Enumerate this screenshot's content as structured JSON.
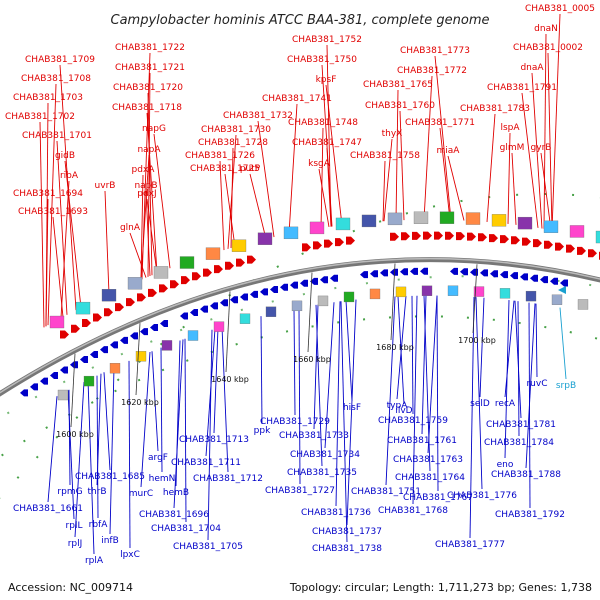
{
  "title": "Campylobacter hominis ATCC BAA-381, complete genome",
  "footer": {
    "accession": "Accession: NC_009714",
    "summary": "Topology: circular; Length: 1,711,273 bp; Genes: 1,738"
  },
  "colors": {
    "forward": "#e00000",
    "reverse": "#0000c8",
    "rna": "#1aa0d0",
    "backbone": "#888888"
  },
  "ticks": [
    "1600 kbp",
    "1620 kbp",
    "1640 kbp",
    "1660 kbp",
    "1680 kbp",
    "1700 kbp"
  ],
  "top_labels": [
    "CHAB381_0005",
    "dnaN",
    "CHAB381_0002",
    "dnaA",
    "CHAB381_1791",
    "CHAB381_1783",
    "lspA",
    "glmM",
    "gyrB",
    "CHAB381_1773",
    "CHAB381_1772",
    "CHAB381_1765",
    "CHAB381_1760",
    "CHAB381_1771",
    "miaA",
    "thyX",
    "CHAB381_1758",
    "CHAB381_1752",
    "CHAB381_1750",
    "kpsF",
    "CHAB381_1741",
    "CHAB381_1748",
    "CHAB381_1747",
    "ksgA",
    "CHAB381_1732",
    "CHAB381_1730",
    "CHAB381_1728",
    "CHAB381_1726",
    "CHAB381_1725",
    "putP",
    "CHAB381_1722",
    "CHAB381_1721",
    "CHAB381_1720",
    "CHAB381_1718",
    "napG",
    "napA",
    "pdxA",
    "napB",
    "pdxJ",
    "CHAB381_1709",
    "CHAB381_1708",
    "CHAB381_1703",
    "CHAB381_1702",
    "CHAB381_1701",
    "gidB",
    "ribA",
    "CHAB381_1694",
    "uvrB",
    "CHAB381_1693",
    "glnA"
  ],
  "bottom_labels": [
    "srpB",
    "ruvC",
    "selD",
    "recA",
    "CHAB381_1781",
    "CHAB381_1784",
    "eno",
    "CHAB381_1788",
    "CHAB381_1776",
    "CHAB381_1792",
    "CHAB381_1777",
    "typA",
    "ilvD",
    "CHAB381_1759",
    "CHAB381_1761",
    "CHAB381_1763",
    "CHAB381_1764",
    "CHAB381_1767",
    "CHAB381_1768",
    "CHAB381_1751",
    "hisF",
    "CHAB381_1729",
    "CHAB381_1733",
    "CHAB381_1734",
    "CHAB381_1735",
    "CHAB381_1727",
    "CHAB381_1736",
    "CHAB381_1737",
    "CHAB381_1738",
    "ppk",
    "CHAB381_1713",
    "CHAB381_1711",
    "CHAB381_1712",
    "CHAB381_1704",
    "CHAB381_1705",
    "CHAB381_1696",
    "argF",
    "hemN",
    "hemB",
    "murC",
    "CHAB381_1685",
    "rpmG",
    "thrB",
    "CHAB381_1661",
    "rplL",
    "rbfA",
    "infB",
    "rplJ",
    "rplA",
    "lpxC"
  ]
}
